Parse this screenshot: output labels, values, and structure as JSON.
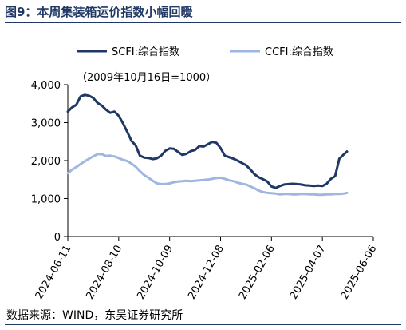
{
  "figure": {
    "title": "图9：本周集装箱运价指数小幅回暖",
    "source": "数据来源：WIND，东吴证券研究所",
    "colors": {
      "title": "#1f3864",
      "rule": "#1f3864"
    }
  },
  "chart_data": {
    "type": "line",
    "note": "（2009年10月16日=1000）",
    "xlabel": "",
    "ylabel": "",
    "ylim": [
      0,
      4000
    ],
    "yticks": [
      0,
      1000,
      2000,
      3000,
      4000
    ],
    "ytick_labels": [
      "0",
      "1,000",
      "2,000",
      "3,000",
      "4,000"
    ],
    "xlim": [
      "2024-06-11",
      "2025-06-06"
    ],
    "xticks": [
      "2024-06-11",
      "2024-08-10",
      "2024-10-09",
      "2024-12-08",
      "2025-02-06",
      "2025-04-07",
      "2025-06-06"
    ],
    "grid": false,
    "legend_position": "top-center",
    "series": [
      {
        "name": "SCFI:综合指数",
        "color": "#1f3864",
        "points": [
          [
            "2024-06-11",
            3290
          ],
          [
            "2024-06-16",
            3400
          ],
          [
            "2024-06-21",
            3470
          ],
          [
            "2024-06-26",
            3690
          ],
          [
            "2024-07-01",
            3730
          ],
          [
            "2024-07-06",
            3710
          ],
          [
            "2024-07-11",
            3650
          ],
          [
            "2024-07-16",
            3520
          ],
          [
            "2024-07-21",
            3450
          ],
          [
            "2024-07-26",
            3340
          ],
          [
            "2024-07-31",
            3260
          ],
          [
            "2024-08-05",
            3290
          ],
          [
            "2024-08-10",
            3180
          ],
          [
            "2024-08-15",
            2980
          ],
          [
            "2024-08-20",
            2760
          ],
          [
            "2024-08-25",
            2520
          ],
          [
            "2024-08-30",
            2400
          ],
          [
            "2024-09-04",
            2130
          ],
          [
            "2024-09-09",
            2080
          ],
          [
            "2024-09-14",
            2070
          ],
          [
            "2024-09-19",
            2040
          ],
          [
            "2024-09-24",
            2060
          ],
          [
            "2024-09-29",
            2130
          ],
          [
            "2024-10-04",
            2260
          ],
          [
            "2024-10-09",
            2320
          ],
          [
            "2024-10-14",
            2310
          ],
          [
            "2024-10-19",
            2230
          ],
          [
            "2024-10-24",
            2150
          ],
          [
            "2024-10-29",
            2180
          ],
          [
            "2024-11-03",
            2250
          ],
          [
            "2024-11-08",
            2280
          ],
          [
            "2024-11-13",
            2380
          ],
          [
            "2024-11-18",
            2370
          ],
          [
            "2024-11-23",
            2430
          ],
          [
            "2024-11-28",
            2490
          ],
          [
            "2024-12-03",
            2470
          ],
          [
            "2024-12-08",
            2330
          ],
          [
            "2024-12-13",
            2130
          ],
          [
            "2024-12-18",
            2090
          ],
          [
            "2024-12-23",
            2050
          ],
          [
            "2024-12-28",
            2000
          ],
          [
            "2025-01-02",
            1940
          ],
          [
            "2025-01-07",
            1880
          ],
          [
            "2025-01-12",
            1770
          ],
          [
            "2025-01-17",
            1640
          ],
          [
            "2025-01-22",
            1560
          ],
          [
            "2025-01-27",
            1510
          ],
          [
            "2025-02-01",
            1450
          ],
          [
            "2025-02-06",
            1320
          ],
          [
            "2025-02-11",
            1280
          ],
          [
            "2025-02-16",
            1330
          ],
          [
            "2025-02-21",
            1370
          ],
          [
            "2025-02-26",
            1380
          ],
          [
            "2025-03-03",
            1390
          ],
          [
            "2025-03-08",
            1380
          ],
          [
            "2025-03-13",
            1370
          ],
          [
            "2025-03-18",
            1350
          ],
          [
            "2025-03-23",
            1340
          ],
          [
            "2025-03-28",
            1330
          ],
          [
            "2025-04-02",
            1340
          ],
          [
            "2025-04-07",
            1330
          ],
          [
            "2025-04-12",
            1390
          ],
          [
            "2025-04-17",
            1520
          ],
          [
            "2025-04-22",
            1590
          ],
          [
            "2025-04-27",
            2050
          ],
          [
            "2025-05-02",
            2160
          ],
          [
            "2025-05-06",
            2240
          ]
        ]
      },
      {
        "name": "CCFI:综合指数",
        "color": "#9fb7e0",
        "points": [
          [
            "2024-06-11",
            1670
          ],
          [
            "2024-06-16",
            1760
          ],
          [
            "2024-06-21",
            1830
          ],
          [
            "2024-06-26",
            1910
          ],
          [
            "2024-07-01",
            1980
          ],
          [
            "2024-07-06",
            2050
          ],
          [
            "2024-07-11",
            2110
          ],
          [
            "2024-07-16",
            2170
          ],
          [
            "2024-07-21",
            2170
          ],
          [
            "2024-07-26",
            2120
          ],
          [
            "2024-07-31",
            2130
          ],
          [
            "2024-08-05",
            2110
          ],
          [
            "2024-08-10",
            2070
          ],
          [
            "2024-08-15",
            2020
          ],
          [
            "2024-08-20",
            1990
          ],
          [
            "2024-08-25",
            1920
          ],
          [
            "2024-08-30",
            1840
          ],
          [
            "2024-09-04",
            1720
          ],
          [
            "2024-09-09",
            1620
          ],
          [
            "2024-09-14",
            1550
          ],
          [
            "2024-09-19",
            1470
          ],
          [
            "2024-09-24",
            1400
          ],
          [
            "2024-09-29",
            1380
          ],
          [
            "2024-10-04",
            1380
          ],
          [
            "2024-10-09",
            1400
          ],
          [
            "2024-10-14",
            1430
          ],
          [
            "2024-10-19",
            1450
          ],
          [
            "2024-10-24",
            1460
          ],
          [
            "2024-10-29",
            1470
          ],
          [
            "2024-11-03",
            1460
          ],
          [
            "2024-11-08",
            1470
          ],
          [
            "2024-11-13",
            1480
          ],
          [
            "2024-11-18",
            1490
          ],
          [
            "2024-11-23",
            1500
          ],
          [
            "2024-11-28",
            1520
          ],
          [
            "2024-12-03",
            1540
          ],
          [
            "2024-12-08",
            1550
          ],
          [
            "2024-12-13",
            1520
          ],
          [
            "2024-12-18",
            1480
          ],
          [
            "2024-12-23",
            1460
          ],
          [
            "2024-12-28",
            1420
          ],
          [
            "2025-01-02",
            1390
          ],
          [
            "2025-01-07",
            1370
          ],
          [
            "2025-01-12",
            1320
          ],
          [
            "2025-01-17",
            1270
          ],
          [
            "2025-01-22",
            1210
          ],
          [
            "2025-01-27",
            1170
          ],
          [
            "2025-02-01",
            1150
          ],
          [
            "2025-02-06",
            1140
          ],
          [
            "2025-02-11",
            1130
          ],
          [
            "2025-02-16",
            1110
          ],
          [
            "2025-02-21",
            1120
          ],
          [
            "2025-02-26",
            1120
          ],
          [
            "2025-03-03",
            1110
          ],
          [
            "2025-03-08",
            1110
          ],
          [
            "2025-03-13",
            1120
          ],
          [
            "2025-03-18",
            1120
          ],
          [
            "2025-03-23",
            1110
          ],
          [
            "2025-03-28",
            1110
          ],
          [
            "2025-04-02",
            1100
          ],
          [
            "2025-04-07",
            1100
          ],
          [
            "2025-04-12",
            1110
          ],
          [
            "2025-04-17",
            1110
          ],
          [
            "2025-04-22",
            1120
          ],
          [
            "2025-04-27",
            1120
          ],
          [
            "2025-05-02",
            1130
          ],
          [
            "2025-05-06",
            1150
          ]
        ]
      }
    ]
  }
}
